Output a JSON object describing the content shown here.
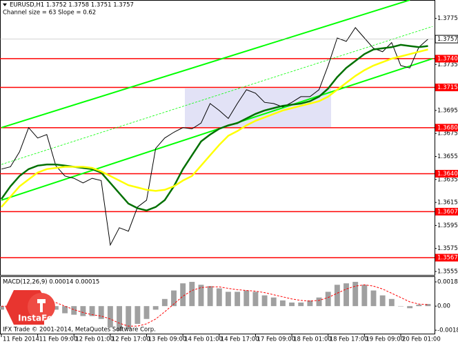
{
  "chart_data": [
    {
      "type": "line",
      "title": "EURUSD,H1 1.3752 1.3758 1.3751 1.3757",
      "subtitle": "Channel size = 63 Slope = 0.62",
      "x": [
        0,
        4,
        8,
        12,
        16,
        20,
        24,
        28,
        32,
        36,
        40,
        44,
        48,
        52,
        56,
        60,
        64,
        68,
        72,
        76,
        80,
        84,
        88,
        92,
        96,
        100,
        104,
        108,
        112,
        116,
        120,
        124,
        128,
        132,
        136,
        140,
        144,
        148,
        152,
        156,
        160,
        164,
        168,
        172,
        176,
        180,
        184,
        188
      ],
      "xlim": [
        -0.6,
        190.9
      ],
      "xticks": [
        {
          "value": 0,
          "label": "11 Feb 2014"
        },
        {
          "value": 16,
          "label": "11 Feb 09:00"
        },
        {
          "value": 32,
          "label": "12 Feb 01:00"
        },
        {
          "value": 48,
          "label": "12 Feb 17:00"
        },
        {
          "value": 64,
          "label": "13 Feb 09:00"
        },
        {
          "value": 80,
          "label": "14 Feb 01:00"
        },
        {
          "value": 96,
          "label": "14 Feb 17:00"
        },
        {
          "value": 112,
          "label": "17 Feb 09:00"
        },
        {
          "value": 128,
          "label": "18 Feb 01:00"
        },
        {
          "value": 144,
          "label": "18 Feb 17:00"
        },
        {
          "value": 160,
          "label": "19 Feb 09:00"
        },
        {
          "value": 176,
          "label": "20 Feb 01:00"
        }
      ],
      "ylim": [
        1.3552,
        1.3791
      ],
      "yticks": [
        1.3775,
        1.3735,
        1.3695,
        1.3675,
        1.3655,
        1.3635,
        1.3615,
        1.3595,
        1.3575,
        1.3555
      ],
      "series": [
        {
          "color": "#000000",
          "width": 1,
          "values": [
            1.3644,
            1.3646,
            1.3659,
            1.368,
            1.3671,
            1.3674,
            1.3647,
            1.3638,
            1.3636,
            1.3632,
            1.3636,
            1.3634,
            1.3578,
            1.3593,
            1.359,
            1.3611,
            1.3617,
            1.3662,
            1.3671,
            1.3676,
            1.368,
            1.3679,
            1.3684,
            1.3701,
            1.3695,
            1.3688,
            1.3701,
            1.3713,
            1.371,
            1.3702,
            1.3701,
            1.3698,
            1.3702,
            1.3707,
            1.3707,
            1.3713,
            1.3734,
            1.3758,
            1.3755,
            1.3767,
            1.3758,
            1.3749,
            1.3746,
            1.3754,
            1.3734,
            1.3732,
            1.375,
            1.3757
          ]
        },
        {
          "color": "#007000",
          "width": 2.5,
          "values": [
            1.3618,
            1.3629,
            1.3638,
            1.3644,
            1.3647,
            1.3648,
            1.3648,
            1.3647,
            1.3646,
            1.3645,
            1.3644,
            1.3641,
            1.3632,
            1.3623,
            1.3614,
            1.361,
            1.3608,
            1.3611,
            1.3617,
            1.3629,
            1.3644,
            1.3656,
            1.3668,
            1.3674,
            1.3679,
            1.3682,
            1.3684,
            1.3688,
            1.3692,
            1.3695,
            1.3697,
            1.3699,
            1.37,
            1.3701,
            1.3703,
            1.3707,
            1.3714,
            1.3724,
            1.3732,
            1.3738,
            1.3744,
            1.3748,
            1.3749,
            1.375,
            1.3752,
            1.3751,
            1.375,
            1.3751
          ]
        },
        {
          "color": "#ffff00",
          "width": 2.5,
          "values": [
            1.3611,
            1.362,
            1.3629,
            1.3635,
            1.3641,
            1.3644,
            1.3645,
            1.3646,
            1.3646,
            1.3646,
            1.3645,
            1.3642,
            1.3638,
            1.3634,
            1.363,
            1.3628,
            1.3626,
            1.3625,
            1.3626,
            1.3629,
            1.3634,
            1.3638,
            1.3647,
            1.3656,
            1.3665,
            1.3673,
            1.3677,
            1.3682,
            1.3686,
            1.3689,
            1.3692,
            1.3695,
            1.3697,
            1.3699,
            1.3701,
            1.3703,
            1.3707,
            1.3713,
            1.3719,
            1.3725,
            1.373,
            1.3734,
            1.3737,
            1.374,
            1.3742,
            1.3744,
            1.3746,
            1.3748
          ]
        }
      ],
      "channel": {
        "color": "#00ff00",
        "lines": [
          {
            "x": [
              0,
              180
            ],
            "values": [
              1.368,
              1.3791
            ],
            "width": 2
          },
          {
            "x": [
              0,
              190
            ],
            "values": [
              1.3648,
              1.3768
            ],
            "width": 0.8,
            "dashed": true
          },
          {
            "x": [
              0,
              190
            ],
            "values": [
              1.3617,
              1.374
            ],
            "width": 2
          }
        ]
      },
      "levels": {
        "color": "#ff0000",
        "lines": [
          {
            "value": 1.374,
            "label": "1.3740"
          },
          {
            "value": 1.3715,
            "label": "1.3715"
          },
          {
            "value": 1.368,
            "label": "1.3680"
          },
          {
            "value": 1.364,
            "label": "1.3640"
          },
          {
            "value": 1.3607,
            "label": "1.3607"
          },
          {
            "value": 1.3567,
            "label": "1.3567"
          }
        ]
      },
      "current_price": 1.3757
    },
    {
      "type": "bar",
      "title": "MACD(12,26,9) 0.00014 0.00015",
      "x": [
        0,
        4,
        8,
        12,
        16,
        20,
        24,
        28,
        32,
        36,
        40,
        44,
        48,
        52,
        56,
        60,
        64,
        68,
        72,
        76,
        80,
        84,
        88,
        92,
        96,
        100,
        104,
        108,
        112,
        116,
        120,
        124,
        128,
        132,
        136,
        140,
        144,
        148,
        152,
        156,
        160,
        164,
        168,
        172,
        176,
        180,
        184,
        188
      ],
      "xlim": [
        -0.6,
        190.9
      ],
      "ylim": [
        -0.00213,
        0.00225
      ],
      "yticks": [
        0.00183,
        {
          "value": 0,
          "label": "0.00"
        },
        -0.00182
      ],
      "series": [
        {
          "color": "#a0a0a0",
          "values": [
            -0.00027,
            0.00011,
            0.00043,
            0.00065,
            0.00054,
            0.00027,
            -0.00027,
            -0.00054,
            -0.00065,
            -0.00075,
            -0.00075,
            -0.00097,
            -0.00161,
            -0.00188,
            -0.00172,
            -0.00134,
            -0.00097,
            -0.00027,
            0.00054,
            0.00118,
            0.00172,
            0.00183,
            0.00161,
            0.00151,
            0.00134,
            0.00108,
            0.00108,
            0.00118,
            0.00108,
            0.00081,
            0.00065,
            0.00043,
            0.00027,
            0.00027,
            0.00043,
            0.00065,
            0.00108,
            0.00161,
            0.00172,
            0.00183,
            0.00161,
            0.00118,
            0.00081,
            0.00054,
            0,
            -0.00016,
            0.00011,
            0.00016
          ]
        },
        {
          "type": "line",
          "color": "#ff0000",
          "dashed": true,
          "values": [
            0,
            0,
            0.00016,
            0.00032,
            0.00043,
            0.00043,
            0.00027,
            0,
            -0.00027,
            -0.00048,
            -0.00065,
            -0.00075,
            -0.00097,
            -0.00129,
            -0.00151,
            -0.00151,
            -0.00134,
            -0.00097,
            -0.00043,
            0.00016,
            0.00075,
            0.00118,
            0.0014,
            0.00145,
            0.00145,
            0.00134,
            0.00124,
            0.00118,
            0.00113,
            0.00102,
            0.00086,
            0.0007,
            0.00054,
            0.00043,
            0.00038,
            0.00043,
            0.00065,
            0.00097,
            0.00129,
            0.00151,
            0.00161,
            0.00151,
            0.00129,
            0.00097,
            0.00065,
            0.00032,
            0.00016,
            0.00011
          ]
        }
      ]
    }
  ],
  "footer": "IFX Trade © 2001-2014, MetaQuotes Software Corp.",
  "logo": "InstaForex"
}
